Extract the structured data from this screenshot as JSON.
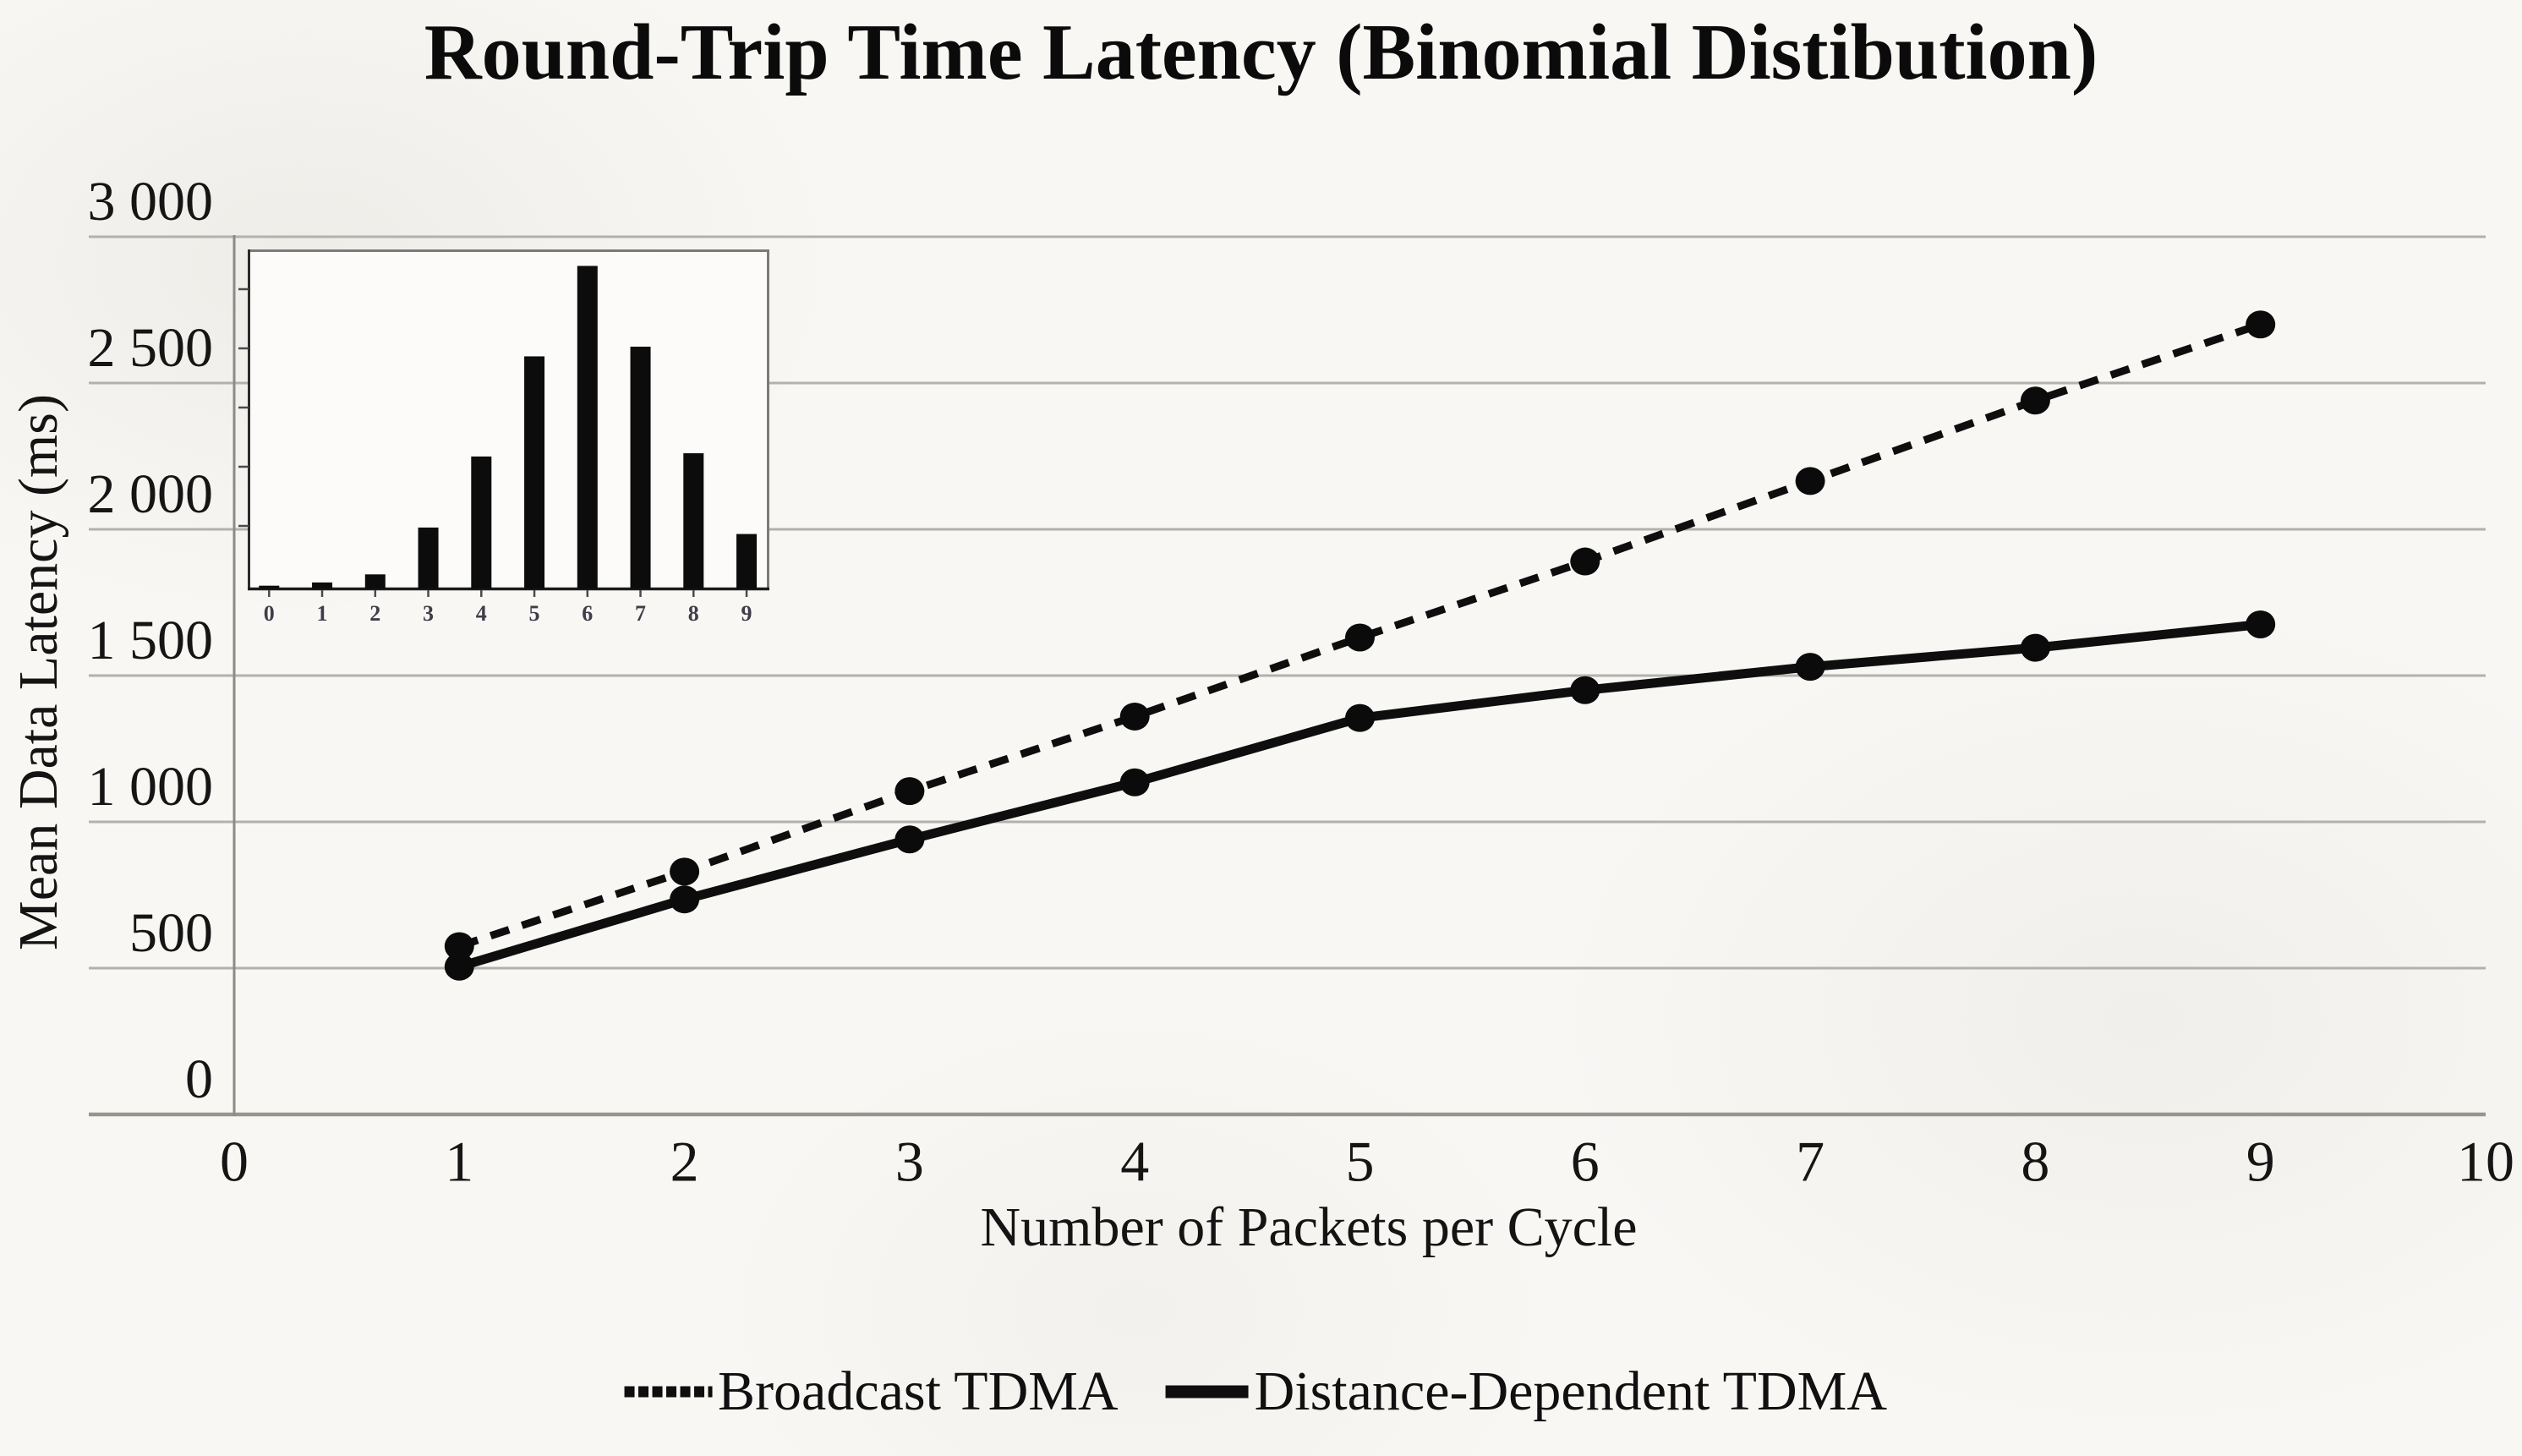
{
  "chart_data": {
    "type": "line",
    "title": "Round-Trip Time Latency (Binomial Distibution)",
    "xlabel": "Number of Packets per Cycle",
    "ylabel": "Mean Data Latency (ms)",
    "xlim": [
      0,
      10
    ],
    "ylim": [
      0,
      3000
    ],
    "xticks": [
      0,
      1,
      2,
      3,
      4,
      5,
      6,
      7,
      8,
      9,
      10
    ],
    "yticks": [
      0,
      500,
      1000,
      1500,
      2000,
      2500,
      3000
    ],
    "ytick_labels": [
      "0",
      "500",
      "1 000",
      "1 500",
      "2 000",
      "2 500",
      "3 000"
    ],
    "grid": "horizontal-only",
    "legend_position": "bottom-center",
    "colors": {
      "ink": "#0e0e0e",
      "gridline": "#b3b1ad",
      "axis_line": "#98958f",
      "tick_text": "#151515"
    },
    "x": [
      1,
      2,
      3,
      4,
      5,
      6,
      7,
      8,
      9
    ],
    "series": [
      {
        "name": "Broadcast TDMA",
        "style": "dotted",
        "marker": "filled-circle",
        "values": [
          575,
          830,
          1105,
          1360,
          1630,
          1890,
          2165,
          2440,
          2700
        ]
      },
      {
        "name": "Distance-Dependent TDMA",
        "style": "solid",
        "marker": "filled-circle",
        "values": [
          505,
          735,
          940,
          1135,
          1355,
          1450,
          1530,
          1595,
          1675
        ]
      }
    ],
    "inset_chart": {
      "type": "bar",
      "description": "binomial-distribution-histogram",
      "categories": [
        "0",
        "1",
        "2",
        "3",
        "4",
        "5",
        "6",
        "7",
        "8",
        "9"
      ],
      "values_relative": [
        0.01,
        0.02,
        0.045,
        0.19,
        0.41,
        0.72,
        1.0,
        0.75,
        0.42,
        0.17
      ],
      "bar_color": "#0c0c0c",
      "unlabeled_left_ticks": 5
    }
  }
}
